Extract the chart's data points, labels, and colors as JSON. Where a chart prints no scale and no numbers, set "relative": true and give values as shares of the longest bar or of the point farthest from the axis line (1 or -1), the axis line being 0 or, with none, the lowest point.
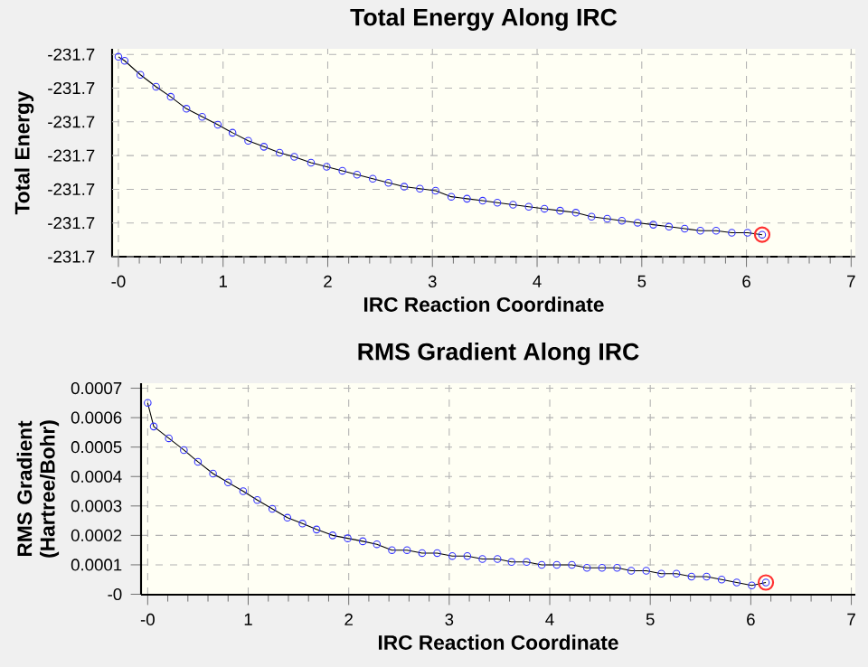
{
  "chart_data": [
    {
      "type": "line",
      "title": "Total Energy Along IRC",
      "xlabel": "IRC Reaction Coordinate",
      "ylabel": "Total Energy",
      "relative": true,
      "grid": true,
      "marker": "circle",
      "xlim": [
        -0.06,
        7.04
      ],
      "xticks": [
        {
          "value": 0,
          "label": "-0"
        },
        1,
        2,
        3,
        4,
        5,
        6,
        7
      ],
      "annotations": [
        "-231.7",
        "-231.7",
        "-231.7",
        "-231.7",
        "-231.7",
        "-231.7",
        "-231.7"
      ],
      "series": [
        {
          "color": "#3333ff",
          "x": [
            0,
            0.06,
            0.21,
            0.36,
            0.5,
            0.65,
            0.8,
            0.95,
            1.09,
            1.24,
            1.39,
            1.54,
            1.68,
            1.84,
            1.99,
            2.14,
            2.28,
            2.43,
            2.58,
            2.73,
            2.88,
            3.03,
            3.18,
            3.33,
            3.48,
            3.62,
            3.77,
            3.92,
            4.07,
            4.22,
            4.37,
            4.52,
            4.67,
            4.81,
            4.96,
            5.11,
            5.26,
            5.41,
            5.56,
            5.71,
            5.86,
            6.01,
            6.15
          ],
          "values": [
            1,
            0.98,
            0.91,
            0.85,
            0.8,
            0.74,
            0.7,
            0.66,
            0.62,
            0.58,
            0.55,
            0.52,
            0.5,
            0.47,
            0.45,
            0.43,
            0.41,
            0.39,
            0.37,
            0.35,
            0.34,
            0.33,
            0.3,
            0.29,
            0.28,
            0.27,
            0.26,
            0.25,
            0.24,
            0.23,
            0.22,
            0.2,
            0.19,
            0.18,
            0.17,
            0.16,
            0.15,
            0.14,
            0.13,
            0.13,
            0.12,
            0.12,
            0.11
          ]
        },
        {
          "type": "scatter",
          "color": "#ff3030",
          "x": [
            6.15
          ],
          "values": [
            0.11
          ]
        }
      ]
    },
    {
      "type": "line",
      "title": "RMS Gradient Along IRC",
      "xlabel": "IRC Reaction Coordinate",
      "ylabel": "RMS Gradient (Hartree/Bohr)",
      "grid": true,
      "marker": "circle",
      "xlim": [
        -0.066,
        7.04
      ],
      "xticks": [
        {
          "value": 0,
          "label": "-0"
        },
        1,
        2,
        3,
        4,
        5,
        6,
        7
      ],
      "ylim": [
        -1.5e-06,
        0.000717
      ],
      "yticks": [
        {
          "value": 0,
          "label": "-0"
        },
        0.0001,
        0.0002,
        0.0003,
        0.0004,
        0.0005,
        0.0006,
        0.0007
      ],
      "series": [
        {
          "color": "#3333ff",
          "x": [
            0,
            0.06,
            0.21,
            0.36,
            0.5,
            0.65,
            0.8,
            0.95,
            1.09,
            1.24,
            1.39,
            1.54,
            1.68,
            1.84,
            1.99,
            2.14,
            2.28,
            2.43,
            2.58,
            2.73,
            2.88,
            3.03,
            3.18,
            3.33,
            3.48,
            3.62,
            3.77,
            3.92,
            4.07,
            4.22,
            4.37,
            4.52,
            4.67,
            4.81,
            4.96,
            5.11,
            5.26,
            5.41,
            5.56,
            5.71,
            5.86,
            6.01,
            6.15
          ],
          "values": [
            0.00065,
            0.00057,
            0.00053,
            0.00049,
            0.00045,
            0.00041,
            0.00038,
            0.00035,
            0.00032,
            0.00029,
            0.00026,
            0.00024,
            0.00022,
            0.0002,
            0.00019,
            0.00018,
            0.00017,
            0.00015,
            0.00015,
            0.00014,
            0.00014,
            0.00013,
            0.00013,
            0.00012,
            0.00012,
            0.00011,
            0.00011,
            0.0001,
            0.0001,
            0.0001,
            9e-05,
            9e-05,
            9e-05,
            8e-05,
            8e-05,
            7e-05,
            7e-05,
            6e-05,
            6e-05,
            5e-05,
            4e-05,
            3e-05,
            4e-05
          ]
        },
        {
          "type": "scatter",
          "color": "#ff3030",
          "x": [
            6.15
          ],
          "values": [
            4e-05
          ]
        }
      ]
    }
  ]
}
